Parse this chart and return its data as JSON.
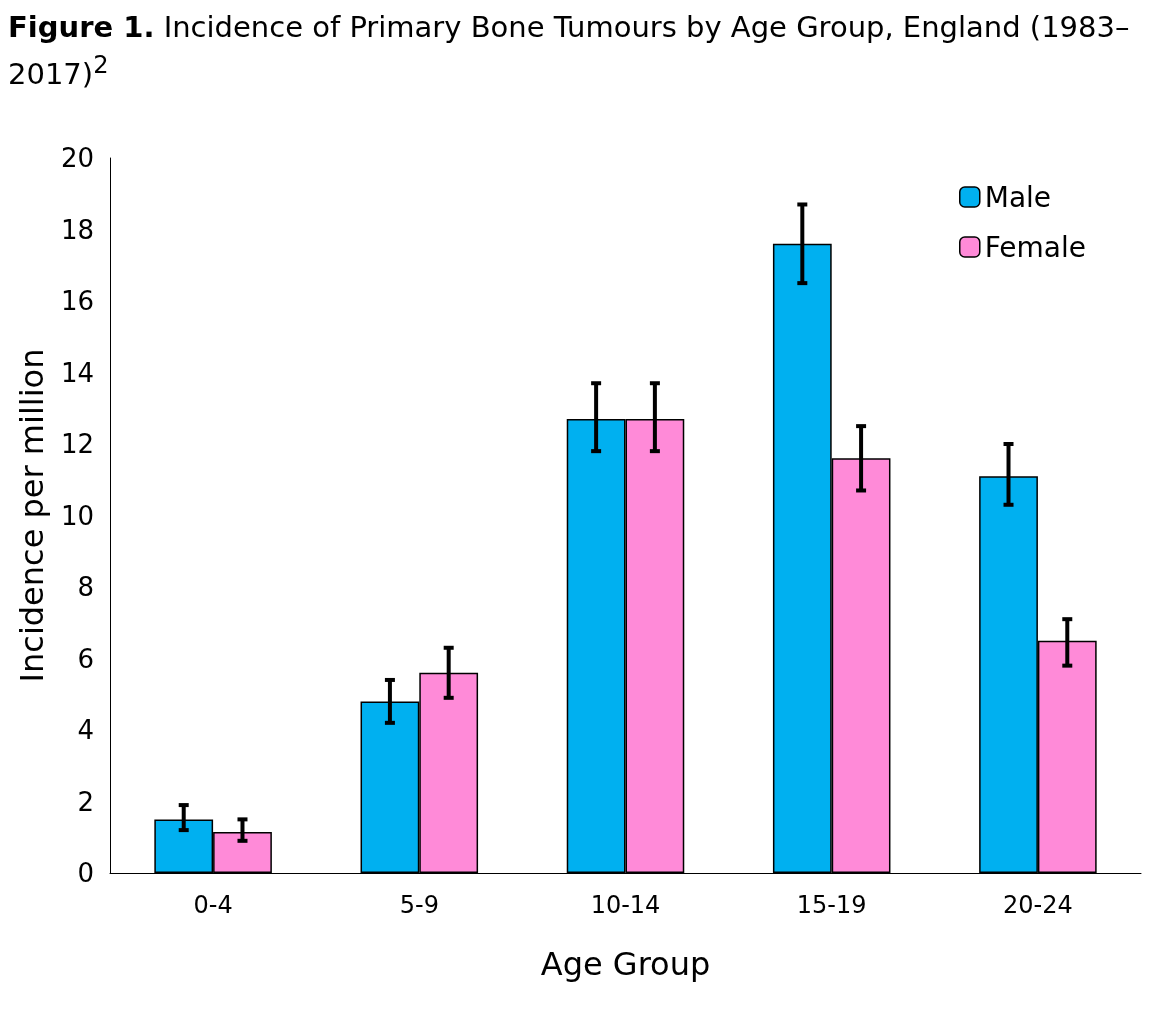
{
  "chart_data": {
    "type": "bar",
    "title": "Figure 1. Incidence of Primary Bone Tumours by Age Group, England (1983–2017)$^{2}$",
    "xlabel": "Age Group",
    "ylabel": "Incidence per million",
    "categories": [
      "0-4",
      "5-9",
      "10-14",
      "15-19",
      "20-24"
    ],
    "series": [
      {
        "name": "Male",
        "color": "#00b0f0",
        "values": [
          1.5,
          4.8,
          12.7,
          17.6,
          11.1
        ],
        "errors": [
          [
            1.2,
            1.9
          ],
          [
            4.2,
            5.4
          ],
          [
            11.8,
            13.7
          ],
          [
            16.5,
            18.7
          ],
          [
            10.3,
            12.0
          ]
        ]
      },
      {
        "name": "Female",
        "color": "#ff8ad8",
        "values": [
          1.15,
          5.6,
          12.7,
          11.6,
          6.5
        ],
        "errors": [
          [
            0.9,
            1.5
          ],
          [
            4.9,
            6.3
          ],
          [
            11.8,
            13.7
          ],
          [
            10.7,
            12.5
          ],
          [
            5.8,
            7.1
          ]
        ]
      }
    ],
    "ylim": [
      0,
      20
    ],
    "yticks": [
      0,
      2,
      4,
      6,
      8,
      10,
      12,
      14,
      16,
      18,
      20
    ],
    "grid": false,
    "legend": "top right"
  }
}
